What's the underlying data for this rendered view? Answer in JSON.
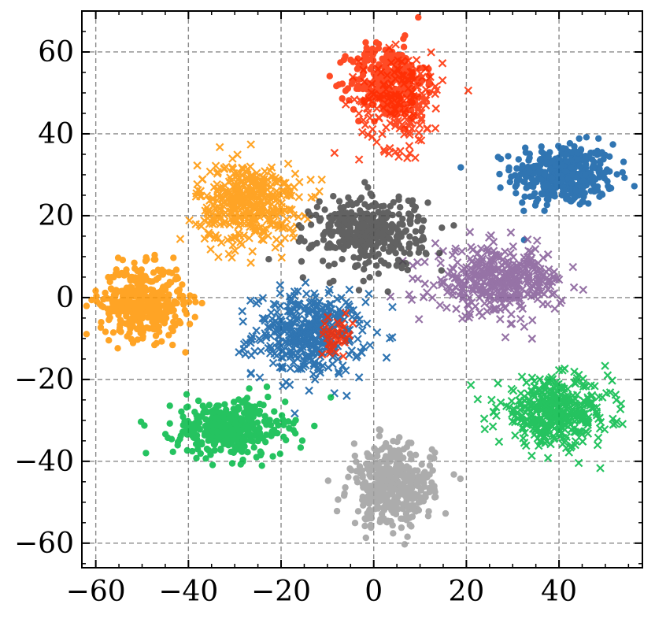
{
  "chart_data": {
    "type": "scatter",
    "title": "",
    "xlabel": "",
    "ylabel": "",
    "xlim": [
      -63,
      58
    ],
    "ylim": [
      -66,
      70
    ],
    "xticks": [
      -60,
      -40,
      -20,
      0,
      20,
      40
    ],
    "yticks": [
      -60,
      -40,
      -20,
      0,
      20,
      40,
      60
    ],
    "xtick_labels": [
      "−60",
      "−40",
      "−20",
      "0",
      "20",
      "40"
    ],
    "ytick_labels": [
      "−60",
      "−40",
      "−20",
      "0",
      "20",
      "40",
      "60"
    ],
    "grid": true,
    "legend": "none",
    "series": [
      {
        "color": "#0C5DA5",
        "marker": "dot",
        "clusters": [
          {
            "cx": 41,
            "cy": 30,
            "sx": 5.5,
            "sy": 3.8,
            "n": 380
          }
        ]
      },
      {
        "color": "#0C5DA5",
        "marker": "cross",
        "clusters": [
          {
            "cx": -14,
            "cy": -9,
            "sx": 6.0,
            "sy": 5.0,
            "n": 400
          }
        ]
      },
      {
        "color": "#FF2C00",
        "marker": "dot",
        "clusters": [
          {
            "cx": 3,
            "cy": 53,
            "sx": 4.0,
            "sy": 4.5,
            "n": 320
          }
        ]
      },
      {
        "color": "#FF2C00",
        "marker": "cross",
        "clusters": [
          {
            "cx": 6,
            "cy": 48,
            "sx": 4.5,
            "sy": 6.0,
            "n": 180
          },
          {
            "cx": -8,
            "cy": -9,
            "sx": 1.8,
            "sy": 2.0,
            "n": 40
          }
        ]
      },
      {
        "color": "#FF9500",
        "marker": "dot",
        "clusters": [
          {
            "cx": -50,
            "cy": -1,
            "sx": 4.5,
            "sy": 4.3,
            "n": 420
          }
        ]
      },
      {
        "color": "#FF9500",
        "marker": "cross",
        "clusters": [
          {
            "cx": -27,
            "cy": 23,
            "sx": 5.5,
            "sy": 5.0,
            "n": 420
          }
        ]
      },
      {
        "color": "#00B945",
        "marker": "dot",
        "clusters": [
          {
            "cx": -31,
            "cy": -32,
            "sx": 6.0,
            "sy": 3.5,
            "n": 380
          }
        ]
      },
      {
        "color": "#00B945",
        "marker": "cross",
        "clusters": [
          {
            "cx": 39,
            "cy": -28,
            "sx": 6.0,
            "sy": 4.0,
            "n": 420
          }
        ]
      },
      {
        "color": "#845B97",
        "marker": "cross",
        "clusters": [
          {
            "cx": 27,
            "cy": 4,
            "sx": 7.0,
            "sy": 4.0,
            "n": 380
          }
        ]
      },
      {
        "color": "#474747",
        "marker": "dot",
        "clusters": [
          {
            "cx": -1,
            "cy": 16,
            "sx": 6.0,
            "sy": 4.5,
            "n": 380
          }
        ]
      },
      {
        "color": "#9E9E9E",
        "marker": "dot",
        "clusters": [
          {
            "cx": 4,
            "cy": -46,
            "sx": 4.5,
            "sy": 5.0,
            "n": 380
          }
        ]
      }
    ]
  }
}
